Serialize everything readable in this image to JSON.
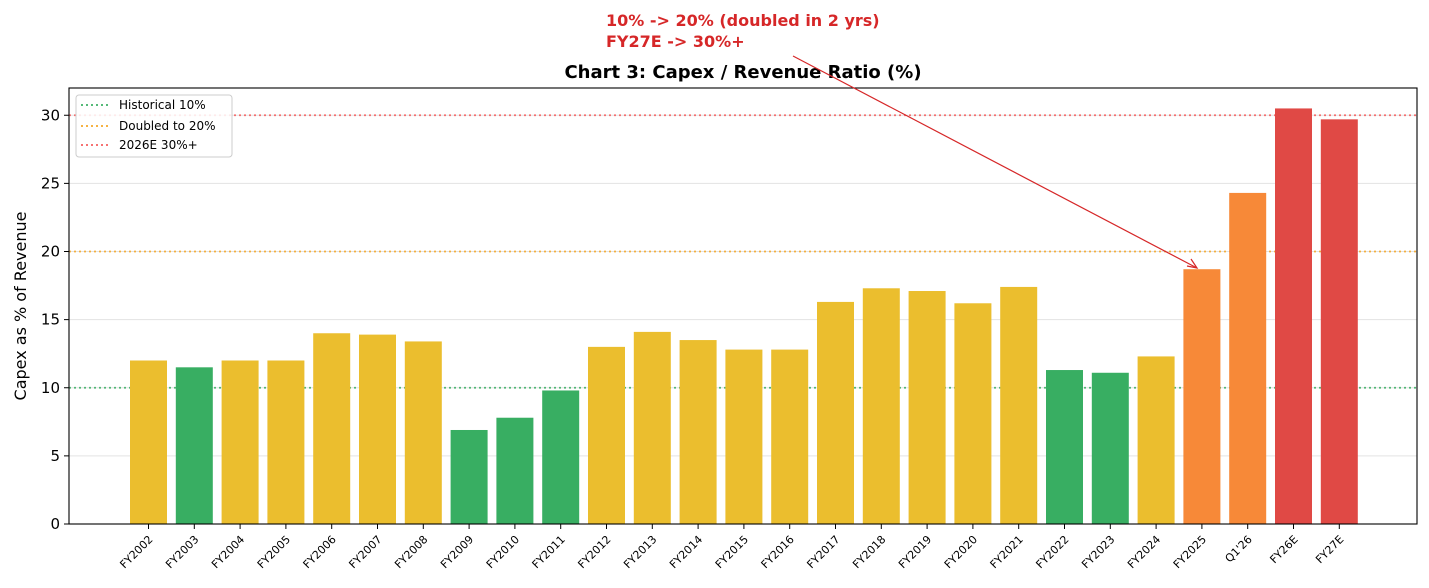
{
  "chart_data": {
    "type": "bar",
    "title": "Chart 3: Capex / Revenue Ratio (%)",
    "xlabel": "",
    "ylabel": "Capex as % of Revenue",
    "ylim": [
      0,
      32
    ],
    "yticks": [
      0,
      5,
      10,
      15,
      20,
      25,
      30
    ],
    "grid": "horizontal",
    "legend_position": "top-left",
    "categories": [
      "FY2002",
      "FY2003",
      "FY2004",
      "FY2005",
      "FY2006",
      "FY2007",
      "FY2008",
      "FY2009",
      "FY2010",
      "FY2011",
      "FY2012",
      "FY2013",
      "FY2014",
      "FY2015",
      "FY2016",
      "FY2017",
      "FY2018",
      "FY2019",
      "FY2020",
      "FY2021",
      "FY2022",
      "FY2023",
      "FY2024",
      "FY2025",
      "Q1'26",
      "FY26E",
      "FY27E"
    ],
    "values": [
      12.0,
      11.5,
      12.0,
      12.0,
      14.0,
      13.9,
      13.4,
      6.9,
      7.8,
      9.8,
      13.0,
      14.1,
      13.5,
      12.8,
      12.8,
      16.3,
      17.3,
      17.1,
      16.2,
      17.4,
      11.3,
      11.1,
      12.3,
      18.7,
      24.3,
      30.5,
      29.7
    ],
    "bar_colors": [
      "#ebbe2e",
      "#38ae62",
      "#ebbe2e",
      "#ebbe2e",
      "#ebbe2e",
      "#ebbe2e",
      "#ebbe2e",
      "#38ae62",
      "#38ae62",
      "#38ae62",
      "#ebbe2e",
      "#ebbe2e",
      "#ebbe2e",
      "#ebbe2e",
      "#ebbe2e",
      "#ebbe2e",
      "#ebbe2e",
      "#ebbe2e",
      "#ebbe2e",
      "#ebbe2e",
      "#38ae62",
      "#38ae62",
      "#ebbe2e",
      "#f78938",
      "#f78938",
      "#e04945",
      "#e04945"
    ],
    "reference_lines": [
      {
        "label": "Historical 10%",
        "value": 10,
        "color": "#38ae62"
      },
      {
        "label": "Doubled to 20%",
        "value": 20,
        "color": "#f5a623"
      },
      {
        "label": "2026E 30%+",
        "value": 30,
        "color": "#f55a5a"
      }
    ],
    "annotation": {
      "lines": [
        "10% -> 20% (doubled in 2 yrs)",
        "FY27E -> 30%+"
      ],
      "color": "#d62728",
      "points_to_category": "FY2025"
    }
  }
}
